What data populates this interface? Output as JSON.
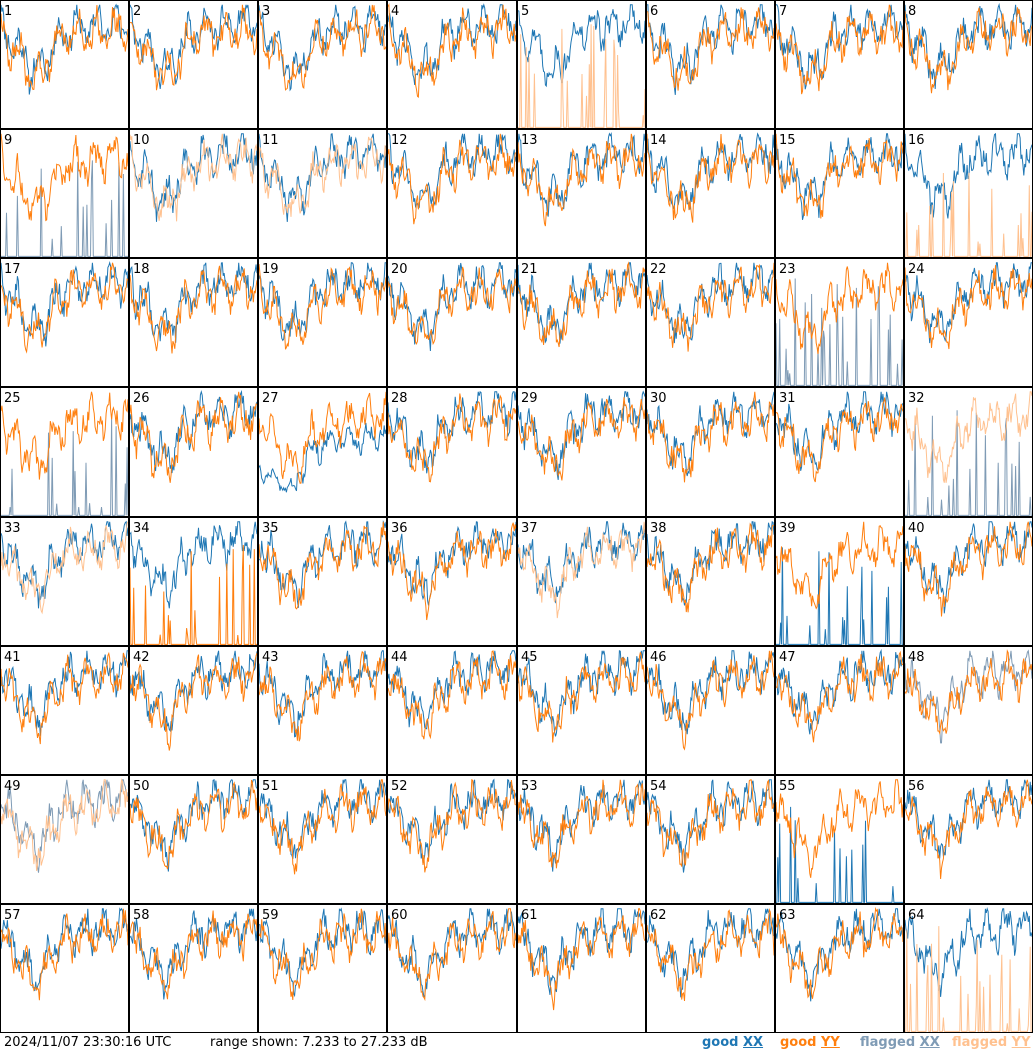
{
  "footer": {
    "timestamp": "2024/11/07 23:30:16 UTC",
    "range": "range shown: 7.233 to 27.233 dB"
  },
  "legend": [
    {
      "key": "good_xx",
      "text": "good XX",
      "color": "#1f77b4"
    },
    {
      "key": "good_yy",
      "text": "good YY",
      "color": "#ff7f0e"
    },
    {
      "key": "flagged_xx",
      "text": "flagged XX",
      "color": "#7f9bb5"
    },
    {
      "key": "flagged_yy",
      "text": "flagged YY",
      "color": "#ffc18f"
    }
  ],
  "chart_data": {
    "type": "line",
    "layout": "small-multiples 8x8",
    "ylim_db": [
      7.233,
      27.233
    ],
    "panels": [
      {
        "label": "1",
        "xx": "good",
        "yy": "good",
        "style": "normal"
      },
      {
        "label": "2",
        "xx": "good",
        "yy": "good",
        "style": "normal"
      },
      {
        "label": "3",
        "xx": "good",
        "yy": "good",
        "style": "normal"
      },
      {
        "label": "4",
        "xx": "good",
        "yy": "good",
        "style": "normal"
      },
      {
        "label": "5",
        "xx": "good",
        "yy": "flagged",
        "style": "yy_spikes"
      },
      {
        "label": "6",
        "xx": "good",
        "yy": "good",
        "style": "normal"
      },
      {
        "label": "7",
        "xx": "good",
        "yy": "good",
        "style": "normal"
      },
      {
        "label": "8",
        "xx": "good",
        "yy": "good",
        "style": "normal"
      },
      {
        "label": "9",
        "xx": "flagged",
        "yy": "good",
        "style": "xx_spikes"
      },
      {
        "label": "10",
        "xx": "good",
        "yy": "flagged",
        "style": "normal"
      },
      {
        "label": "11",
        "xx": "good",
        "yy": "flagged",
        "style": "normal"
      },
      {
        "label": "12",
        "xx": "good",
        "yy": "good",
        "style": "normal"
      },
      {
        "label": "13",
        "xx": "good",
        "yy": "good",
        "style": "normal"
      },
      {
        "label": "14",
        "xx": "good",
        "yy": "good",
        "style": "normal"
      },
      {
        "label": "15",
        "xx": "good",
        "yy": "good",
        "style": "normal"
      },
      {
        "label": "16",
        "xx": "good",
        "yy": "flagged",
        "style": "yy_spikes"
      },
      {
        "label": "17",
        "xx": "good",
        "yy": "good",
        "style": "normal"
      },
      {
        "label": "18",
        "xx": "good",
        "yy": "good",
        "style": "normal"
      },
      {
        "label": "19",
        "xx": "good",
        "yy": "good",
        "style": "normal"
      },
      {
        "label": "20",
        "xx": "good",
        "yy": "good",
        "style": "normal"
      },
      {
        "label": "21",
        "xx": "good",
        "yy": "good",
        "style": "normal"
      },
      {
        "label": "22",
        "xx": "good",
        "yy": "good",
        "style": "normal"
      },
      {
        "label": "23",
        "xx": "flagged",
        "yy": "good",
        "style": "xx_spikes"
      },
      {
        "label": "24",
        "xx": "good",
        "yy": "good",
        "style": "normal"
      },
      {
        "label": "25",
        "xx": "flagged",
        "yy": "good",
        "style": "xx_spikes"
      },
      {
        "label": "26",
        "xx": "good",
        "yy": "good",
        "style": "normal"
      },
      {
        "label": "27",
        "xx": "good",
        "yy": "good",
        "style": "xx_dip"
      },
      {
        "label": "28",
        "xx": "good",
        "yy": "good",
        "style": "normal"
      },
      {
        "label": "29",
        "xx": "good",
        "yy": "good",
        "style": "normal"
      },
      {
        "label": "30",
        "xx": "good",
        "yy": "good",
        "style": "normal"
      },
      {
        "label": "31",
        "xx": "good",
        "yy": "good",
        "style": "normal"
      },
      {
        "label": "32",
        "xx": "flagged",
        "yy": "flagged",
        "style": "xx_spikes"
      },
      {
        "label": "33",
        "xx": "good",
        "yy": "flagged",
        "style": "normal"
      },
      {
        "label": "34",
        "xx": "good",
        "yy": "good",
        "style": "yy_spikes"
      },
      {
        "label": "35",
        "xx": "good",
        "yy": "good",
        "style": "normal"
      },
      {
        "label": "36",
        "xx": "good",
        "yy": "good",
        "style": "normal"
      },
      {
        "label": "37",
        "xx": "good",
        "yy": "flagged",
        "style": "normal"
      },
      {
        "label": "38",
        "xx": "good",
        "yy": "good",
        "style": "normal"
      },
      {
        "label": "39",
        "xx": "good",
        "yy": "good",
        "style": "xx_spikes"
      },
      {
        "label": "40",
        "xx": "good",
        "yy": "good",
        "style": "normal"
      },
      {
        "label": "41",
        "xx": "good",
        "yy": "good",
        "style": "normal"
      },
      {
        "label": "42",
        "xx": "good",
        "yy": "good",
        "style": "normal"
      },
      {
        "label": "43",
        "xx": "good",
        "yy": "good",
        "style": "normal"
      },
      {
        "label": "44",
        "xx": "good",
        "yy": "good",
        "style": "normal"
      },
      {
        "label": "45",
        "xx": "good",
        "yy": "good",
        "style": "normal"
      },
      {
        "label": "46",
        "xx": "good",
        "yy": "good",
        "style": "normal"
      },
      {
        "label": "47",
        "xx": "good",
        "yy": "good",
        "style": "normal"
      },
      {
        "label": "48",
        "xx": "flagged",
        "yy": "good",
        "style": "normal"
      },
      {
        "label": "49",
        "xx": "flagged",
        "yy": "flagged",
        "style": "normal"
      },
      {
        "label": "50",
        "xx": "good",
        "yy": "good",
        "style": "normal"
      },
      {
        "label": "51",
        "xx": "good",
        "yy": "good",
        "style": "normal"
      },
      {
        "label": "52",
        "xx": "good",
        "yy": "good",
        "style": "normal"
      },
      {
        "label": "53",
        "xx": "good",
        "yy": "good",
        "style": "normal"
      },
      {
        "label": "54",
        "xx": "good",
        "yy": "good",
        "style": "normal"
      },
      {
        "label": "55",
        "xx": "good",
        "yy": "good",
        "style": "xx_spikes"
      },
      {
        "label": "56",
        "xx": "good",
        "yy": "good",
        "style": "normal"
      },
      {
        "label": "57",
        "xx": "good",
        "yy": "good",
        "style": "normal"
      },
      {
        "label": "58",
        "xx": "good",
        "yy": "good",
        "style": "normal"
      },
      {
        "label": "59",
        "xx": "good",
        "yy": "good",
        "style": "normal"
      },
      {
        "label": "60",
        "xx": "good",
        "yy": "good",
        "style": "normal"
      },
      {
        "label": "61",
        "xx": "good",
        "yy": "good",
        "style": "normal"
      },
      {
        "label": "62",
        "xx": "good",
        "yy": "good",
        "style": "normal"
      },
      {
        "label": "63",
        "xx": "good",
        "yy": "good",
        "style": "normal"
      },
      {
        "label": "64",
        "xx": "good",
        "yy": "flagged",
        "style": "yy_spikes"
      }
    ]
  }
}
